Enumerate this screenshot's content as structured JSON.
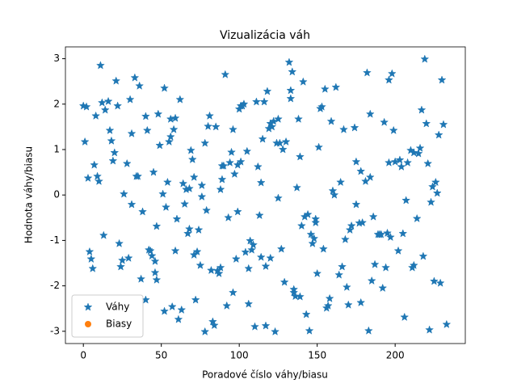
{
  "chart_data": {
    "type": "scatter",
    "title": "Vizualizácia váh",
    "x_label": "Poradové číslo váhy/biasu",
    "y_label": "Hodnota váhy/biasu",
    "xlim": [
      -11.5,
      245
    ],
    "ylim": [
      -3.27,
      3.26
    ],
    "xticks": [
      0,
      50,
      100,
      150,
      200
    ],
    "yticks": [
      -3,
      -2,
      -1,
      0,
      1,
      2,
      3
    ],
    "legend": "lower left",
    "series": [
      {
        "name": "Váhy",
        "color": "#1f77b4",
        "marker": "star",
        "x": [
          0,
          2,
          1,
          3,
          4,
          5,
          6,
          7,
          8,
          9,
          10,
          11,
          12,
          13,
          14,
          16,
          17,
          18,
          19,
          20,
          21,
          22,
          23,
          24,
          25,
          26,
          28,
          29,
          30,
          31,
          31,
          33,
          34,
          35,
          36,
          37,
          38,
          40,
          40,
          41,
          42,
          43,
          44,
          45,
          46,
          46,
          47,
          47,
          48,
          49,
          51,
          52,
          52,
          53,
          54,
          55,
          56,
          56,
          57,
          58,
          59,
          59,
          60,
          61,
          62,
          63,
          64,
          65,
          66,
          67,
          68,
          68,
          69,
          70,
          71,
          71,
          72,
          73,
          74,
          75,
          76,
          76,
          78,
          78,
          79,
          80,
          81,
          82,
          83,
          84,
          85,
          86,
          87,
          88,
          88,
          89,
          89,
          90,
          91,
          92,
          93,
          94,
          95,
          96,
          96,
          97,
          98,
          99,
          99,
          100,
          101,
          101,
          102,
          103,
          104,
          105,
          106,
          106,
          107,
          108,
          109,
          110,
          111,
          112,
          113,
          114,
          114,
          115,
          116,
          117,
          117,
          118,
          119,
          120,
          120,
          121,
          122,
          123,
          124,
          125,
          125,
          126,
          127,
          128,
          129,
          130,
          132,
          133,
          133,
          134,
          135,
          135,
          136,
          137,
          138,
          139,
          139,
          140,
          141,
          142,
          143,
          144,
          145,
          146,
          147,
          148,
          149,
          149,
          150,
          151,
          152,
          153,
          154,
          155,
          156,
          157,
          158,
          159,
          160,
          161,
          162,
          164,
          165,
          166,
          167,
          168,
          169,
          170,
          171,
          172,
          174,
          175,
          175,
          177,
          178,
          178,
          179,
          181,
          182,
          183,
          184,
          184,
          185,
          186,
          187,
          189,
          190,
          191,
          192,
          193,
          194,
          195,
          196,
          196,
          197,
          198,
          199,
          200,
          202,
          203,
          204,
          205,
          206,
          207,
          208,
          210,
          211,
          212,
          212,
          214,
          215,
          216,
          217,
          218,
          219,
          220,
          221,
          222,
          223,
          224,
          225,
          226,
          227,
          228,
          229,
          230,
          231,
          233
        ],
        "values": [
          1.96,
          1.94,
          1.17,
          0.37,
          -1.25,
          -1.41,
          -1.62,
          0.66,
          1.74,
          0.41,
          0.3,
          2.85,
          2.03,
          -0.89,
          1.87,
          2.06,
          1.42,
          1.19,
          0.75,
          0.93,
          2.51,
          1.96,
          -1.07,
          -1.58,
          -1.44,
          0.02,
          0.69,
          -1.39,
          2.1,
          1.35,
          -0.21,
          2.58,
          0.41,
          0.41,
          2.4,
          -1.85,
          -0.37,
          -2.31,
          1.73,
          1.42,
          -1.21,
          -1.23,
          -1.34,
          0.5,
          -1.46,
          -1.71,
          -1.87,
          -0.69,
          1.78,
          1.09,
          0.02,
          -2.56,
          2.35,
          -0.27,
          0.28,
          1.17,
          1.28,
          1.67,
          -2.46,
          1.44,
          -1.23,
          1.69,
          -0.53,
          -2.74,
          2.1,
          -2.53,
          0.25,
          -0.2,
          0.12,
          -0.85,
          -0.75,
          0.14,
          0.98,
          0.78,
          -1.32,
          0.39,
          -2.31,
          -1.25,
          -0.77,
          -1.55,
          -0.04,
          0.21,
          1.14,
          -3.01,
          -0.34,
          1.51,
          1.74,
          -1.66,
          -2.79,
          -2.87,
          1.5,
          -1.67,
          -1.73,
          0.12,
          -1.6,
          0.64,
          0.34,
          0.64,
          2.65,
          -2.44,
          -0.5,
          0.71,
          0.94,
          -2.15,
          1.44,
          0.46,
          -1.41,
          0.66,
          -0.37,
          1.89,
          1.96,
          0.73,
          1.96,
          2.0,
          -1.26,
          0.96,
          -2.4,
          -1.62,
          -1.01,
          -1.21,
          -1.1,
          -2.9,
          2.05,
          0.62,
          -0.45,
          -1.37,
          0.27,
          1.23,
          2.05,
          -2.88,
          -1.57,
          2.28,
          1.46,
          -1.39,
          1.57,
          1.5,
          1.62,
          -3.01,
          1.14,
          1.67,
          -0.07,
          1.14,
          -1.19,
          1.0,
          -1.92,
          1.17,
          2.92,
          2.3,
          2.12,
          2.71,
          -2.08,
          -2.15,
          -2.23,
          0.16,
          1.67,
          -2.24,
          0.84,
          -0.68,
          2.49,
          -0.48,
          -2.63,
          -0.43,
          -2.99,
          -0.87,
          -1.07,
          -0.96,
          -0.61,
          -0.53,
          -1.73,
          1.05,
          1.9,
          1.94,
          -1.19,
          2.33,
          -2.49,
          -2.44,
          -2.28,
          1.62,
          0.09,
          0.0,
          2.37,
          -1.76,
          0.28,
          -1.58,
          1.44,
          -0.98,
          -2.03,
          -2.42,
          -0.77,
          -0.68,
          1.48,
          0.73,
          -0.21,
          -0.62,
          -2.37,
          0.52,
          -0.61,
          0.3,
          2.69,
          -2.99,
          1.78,
          0.39,
          -1.89,
          -0.48,
          -1.53,
          -0.87,
          -0.87,
          -0.87,
          -2.05,
          1.6,
          -1.6,
          -0.84,
          2.53,
          0.71,
          -0.93,
          2.67,
          1.42,
          0.73,
          -1.23,
          0.77,
          0.62,
          -0.85,
          -2.69,
          -0.12,
          0.71,
          0.98,
          -1.6,
          0.93,
          -1.55,
          -0.52,
          0.91,
          1.03,
          1.87,
          -1.35,
          2.99,
          1.57,
          0.69,
          -2.97,
          -0.16,
          0.18,
          -1.9,
          0.28,
          0.04,
          1.32,
          -1.94,
          2.53,
          1.55,
          -2.85
        ]
      },
      {
        "name": "Biasy",
        "color": "#ff7f0e",
        "marker": "circle",
        "x": [],
        "values": []
      }
    ]
  }
}
